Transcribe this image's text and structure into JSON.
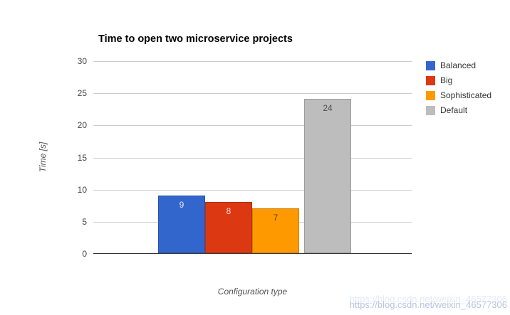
{
  "page": {
    "background": "#ffffff"
  },
  "chart_data": {
    "type": "bar",
    "title": "Time to open two microservice projects",
    "xlabel": "Configuration type",
    "ylabel": "Time [s]",
    "ylim": [
      0,
      30
    ],
    "yticks": [
      0,
      5,
      10,
      15,
      20,
      25,
      30
    ],
    "categories": [
      "Configuration type"
    ],
    "grid": true,
    "legend_position": "right",
    "series": [
      {
        "name": "Balanced",
        "values": [
          9
        ],
        "color": "#3366cc",
        "label_color": "#dfe4f0"
      },
      {
        "name": "Big",
        "values": [
          8
        ],
        "color": "#dc3912",
        "label_color": "#f4dcd4"
      },
      {
        "name": "Sophisticated",
        "values": [
          7
        ],
        "color": "#ff9900",
        "label_color": "#5c4700"
      },
      {
        "name": "Default",
        "values": [
          24
        ],
        "color": "#bdbdbd",
        "label_color": "#4d4d4d"
      }
    ]
  },
  "watermark": {
    "text": "https://blog.csdn.net/weixin_46577306",
    "color": "#b7c5e0"
  }
}
